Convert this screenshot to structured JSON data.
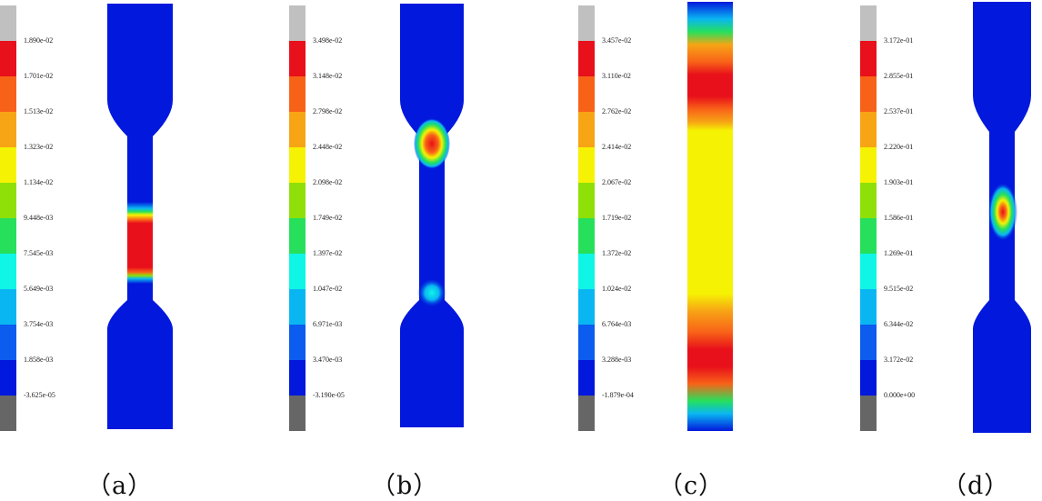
{
  "legend_colors": [
    "#c0c0c0",
    "#e8101a",
    "#f86218",
    "#f7a415",
    "#f6f203",
    "#8fe008",
    "#26e05c",
    "#0ff5e6",
    "#0ab6f2",
    "#0c5cef",
    "#0218dc",
    "#666666"
  ],
  "panels": [
    {
      "label": "（a）",
      "ticks": [
        "1.890e-02",
        "1.701e-02",
        "1.513e-02",
        "1.323e-02",
        "1.134e-02",
        "9.448e-03",
        "7.545e-03",
        "5.649e-03",
        "3.754e-03",
        "1.858e-03",
        "-3.625e-05"
      ]
    },
    {
      "label": "（b）",
      "ticks": [
        "3.498e-02",
        "3.148e-02",
        "2.798e-02",
        "2.448e-02",
        "2.098e-02",
        "1.749e-02",
        "1.397e-02",
        "1.047e-02",
        "6.971e-03",
        "3.470e-03",
        "-3.190e-05"
      ]
    },
    {
      "label": "（c）",
      "ticks": [
        "3.457e-02",
        "3.110e-02",
        "2.762e-02",
        "2.414e-02",
        "2.067e-02",
        "1.719e-02",
        "1.372e-02",
        "1.024e-02",
        "6.764e-03",
        "3.288e-03",
        "-1.879e-04"
      ]
    },
    {
      "label": "（d）",
      "ticks": [
        "3.172e-01",
        "2.855e-01",
        "2.537e-01",
        "2.220e-01",
        "1.903e-01",
        "1.586e-01",
        "1.269e-01",
        "9.515e-02",
        "6.344e-02",
        "3.172e-02",
        "0.000e+00"
      ]
    }
  ]
}
